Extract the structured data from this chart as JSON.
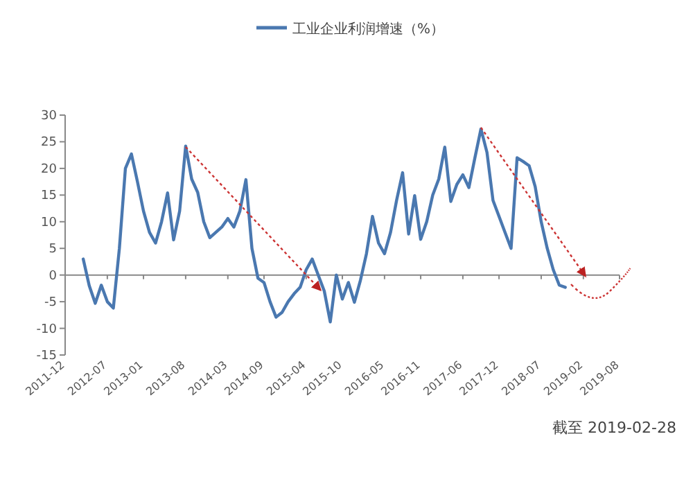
{
  "chart_data": {
    "type": "line",
    "legend": "top",
    "annotations": [
      "截至 2019-02-28"
    ],
    "x": [
      "2012-03",
      "2012-04",
      "2012-05",
      "2012-06",
      "2012-07",
      "2012-08",
      "2012-09",
      "2012-10",
      "2012-11",
      "2012-12",
      "2013-01",
      "2013-02",
      "2013-03",
      "2013-04",
      "2013-05",
      "2013-06",
      "2013-07",
      "2013-08",
      "2013-09",
      "2013-10",
      "2013-11",
      "2013-12",
      "2014-01",
      "2014-02",
      "2014-03",
      "2014-04",
      "2014-05",
      "2014-06",
      "2014-07",
      "2014-08",
      "2014-09",
      "2014-10",
      "2014-11",
      "2014-12",
      "2015-01",
      "2015-02",
      "2015-03",
      "2015-04",
      "2015-05",
      "2015-06",
      "2015-07",
      "2015-08",
      "2015-09",
      "2015-10",
      "2015-11",
      "2015-12",
      "2016-01",
      "2016-02",
      "2016-03",
      "2016-04",
      "2016-05",
      "2016-06",
      "2016-07",
      "2016-08",
      "2016-09",
      "2016-10",
      "2016-11",
      "2016-12",
      "2017-01",
      "2017-02",
      "2017-03",
      "2017-04",
      "2017-05",
      "2017-06",
      "2017-07",
      "2017-08",
      "2017-09",
      "2017-10",
      "2017-11",
      "2017-12",
      "2018-01",
      "2018-02",
      "2018-03",
      "2018-04",
      "2018-05",
      "2018-06",
      "2018-07",
      "2018-08",
      "2018-09",
      "2018-10",
      "2018-11"
    ],
    "series": [
      {
        "name": "工业企业利润增速（%）",
        "color": "#4a78b0",
        "values": [
          3,
          -2,
          -5.3,
          -1.9,
          -5,
          -6.2,
          5,
          20,
          22.7,
          17.5,
          12,
          8,
          6,
          10,
          15.4,
          6.6,
          12,
          24.2,
          18,
          15.5,
          10,
          7,
          8,
          9,
          10.6,
          9,
          12,
          17.9,
          5,
          -0.6,
          -1.4,
          -5,
          -7.9,
          -7,
          -5,
          -3.5,
          -2.3,
          1,
          3,
          0,
          -3,
          -8.8,
          0,
          -4.5,
          -1.4,
          -5.1,
          -1,
          4,
          11,
          6,
          4,
          8,
          14,
          19.2,
          7.7,
          14.9,
          6.7,
          10,
          15,
          18,
          24,
          13.8,
          17,
          18.8,
          16.4,
          22,
          27.4,
          23,
          14,
          11,
          8,
          5,
          22,
          21.3,
          20.5,
          16.6,
          10,
          5,
          1,
          -1.9,
          -2.3
        ]
      }
    ],
    "xlim": [
      "2011-12",
      "2019-08"
    ],
    "xticks": [
      "2011-12",
      "2012-07",
      "2013-01",
      "2013-08",
      "2014-03",
      "2014-09",
      "2015-04",
      "2015-10",
      "2016-05",
      "2016-11",
      "2017-06",
      "2017-12",
      "2018-07",
      "2019-02",
      "2019-08"
    ],
    "ylim": [
      -15,
      30
    ],
    "yticks": [
      -15,
      -10,
      -5,
      0,
      5,
      10,
      15,
      20,
      25,
      30
    ],
    "marker": "none",
    "line_style": "solid"
  }
}
